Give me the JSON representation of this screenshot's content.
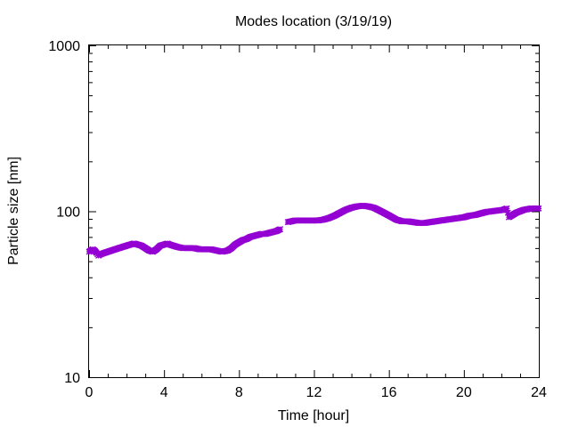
{
  "chart_data": {
    "type": "scatter",
    "title": "Modes location (3/19/19)",
    "xlabel": "Time [hour]",
    "ylabel": "Particle size [nm]",
    "xlim": [
      0,
      24
    ],
    "ylim": [
      10,
      1000
    ],
    "yscale": "log",
    "xticks": [
      "0",
      "4",
      "8",
      "12",
      "16",
      "20",
      "24"
    ],
    "yticks": [
      "10",
      "100",
      "1000"
    ],
    "grid": false,
    "marker_color": "#9400d3",
    "marker": "plus-cross",
    "series": [
      {
        "x": [
          0,
          0.1,
          0.2,
          0.3,
          0.4,
          0.5,
          0.6,
          0.8,
          1.0,
          1.2,
          1.4,
          1.6,
          1.8,
          2.0,
          2.2,
          2.4,
          2.6,
          2.8,
          3.0,
          3.2,
          3.4,
          3.6,
          3.8,
          4.0,
          4.2,
          4.3,
          4.5,
          4.7,
          5.0,
          5.3,
          5.6,
          5.9,
          6.2,
          6.5,
          6.8,
          7.1,
          7.4,
          7.6,
          7.8,
          8.0,
          8.2,
          8.4,
          8.6,
          8.8,
          9.0,
          9.2,
          9.4,
          9.6,
          9.8,
          10.0,
          10.2,
          10.6,
          10.8,
          11.0,
          11.3,
          11.6,
          11.9,
          12.2,
          12.5,
          12.8,
          13.1,
          13.4,
          13.7,
          14.0,
          14.3,
          14.6,
          14.9,
          15.2,
          15.5,
          15.8,
          16.1,
          16.4,
          16.7,
          17.0,
          17.3,
          17.6,
          17.9,
          18.2,
          18.5,
          18.8,
          19.1,
          19.4,
          19.7,
          20.0,
          20.3,
          20.6,
          20.9,
          21.2,
          21.5,
          21.8,
          22.1,
          22.3,
          22.4,
          22.6,
          22.8,
          23.0,
          23.2,
          23.4,
          23.6,
          23.8,
          24.0
        ],
        "y": [
          57,
          58,
          59,
          58,
          56,
          54,
          55,
          56,
          57,
          58,
          59,
          60,
          61,
          62,
          63,
          64,
          63,
          62,
          60,
          58,
          57,
          59,
          62,
          63,
          64,
          63,
          62,
          61,
          60,
          60,
          60,
          59,
          59,
          59,
          58,
          57,
          58,
          60,
          63,
          65,
          67,
          68,
          70,
          71,
          72,
          73,
          73,
          74,
          75,
          76,
          78,
          86,
          87,
          88,
          88,
          88,
          88,
          88,
          89,
          91,
          94,
          98,
          102,
          105,
          107,
          108,
          107,
          105,
          101,
          97,
          93,
          89,
          87,
          87,
          86,
          85,
          85,
          86,
          87,
          88,
          89,
          90,
          91,
          92,
          94,
          95,
          97,
          99,
          100,
          101,
          102,
          104,
          92,
          95,
          98,
          100,
          102,
          103,
          104,
          104,
          104
        ]
      }
    ]
  }
}
